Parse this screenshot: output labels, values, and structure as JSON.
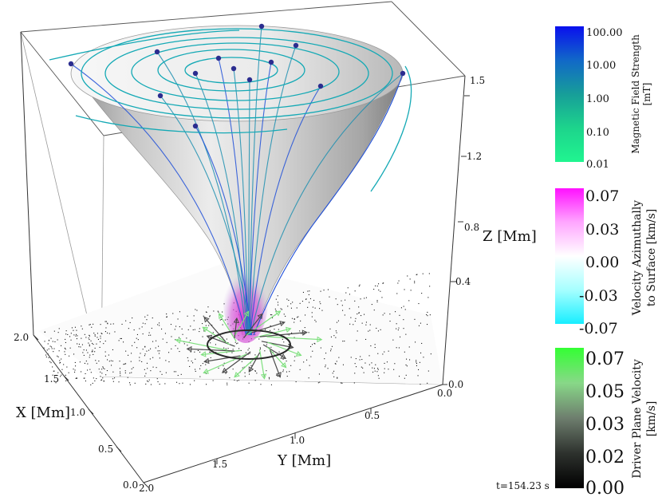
{
  "axes": {
    "x_label": "X [Mm]",
    "y_label": "Y [Mm]",
    "z_label": "Z [Mm]",
    "x_ticks": [
      "2.0",
      "1.5",
      "1.0",
      "0.5",
      "0.0"
    ],
    "y_ticks": [
      "2.0",
      "1.5",
      "1.0",
      "0.5",
      "0.0"
    ],
    "z_ticks": [
      "0.0",
      "0.4",
      "0.8",
      "1.2",
      "1.5"
    ]
  },
  "colorbars": [
    {
      "title_line1": "Magnetic Field Strength",
      "title_line2": "[mT]",
      "ticks": [
        "100.00",
        "10.00",
        "1.00",
        "0.10",
        "0.01"
      ],
      "colors": [
        "#0a10ee",
        "#1168c8",
        "#179e99",
        "#1dd48c",
        "#20f590"
      ]
    },
    {
      "title_line1": "Velocity Azimuthally",
      "title_line2": "to Surface [km/s]",
      "ticks": [
        "0.07",
        "0.03",
        "0.00",
        "-0.03",
        "-0.07"
      ],
      "colors": [
        "#ff10ff",
        "#ffa6ff",
        "#ffffff",
        "#a6ffff",
        "#18eeff"
      ]
    },
    {
      "title_line1": "Driver Plane Velocity",
      "title_line2": "[km/s]",
      "ticks": [
        "0.07",
        "0.05",
        "0.03",
        "0.02",
        "0.00"
      ],
      "colors": [
        "#33ff33",
        "#88d888",
        "#6e7e6e",
        "#2e322e",
        "#000000"
      ]
    }
  ],
  "timestamp": "t=154.23 s",
  "colors": {
    "funnel": "#d6d6d6",
    "field_line": "#1c8fb0",
    "ring": "#14a9b5",
    "seed_point": "#2b2d8f",
    "driver_arrow": "#7ee07e"
  }
}
